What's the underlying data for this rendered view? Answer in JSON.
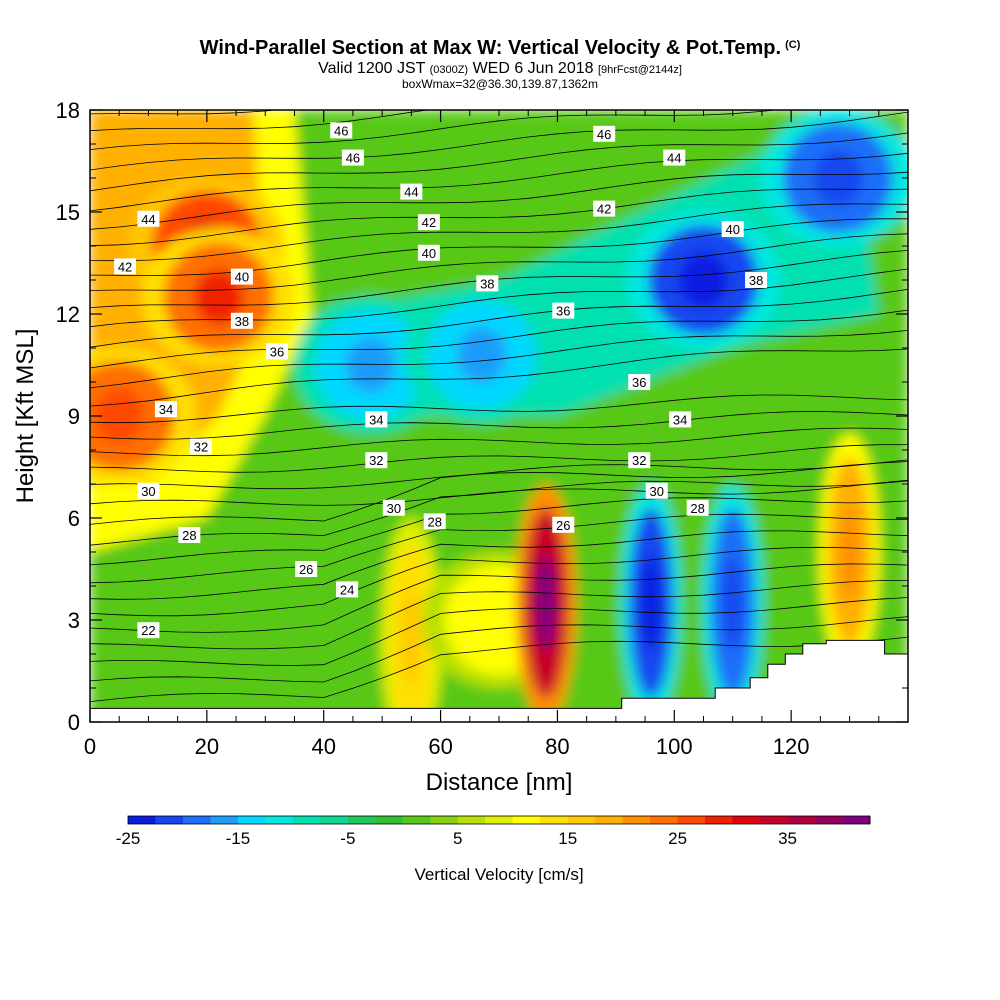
{
  "title": {
    "main": "Wind-Parallel Section at Max W: Vertical Velocity & Pot.Temp.",
    "copyright": "(C)",
    "valid_prefix": "Valid 1200 JST",
    "valid_utc": "(0300Z)",
    "valid_date": "WED 6 Jun 2018",
    "forecast": "[9hrFcst@2144z]",
    "box_info": "boxWmax=32@36.30,139.87,1362m"
  },
  "chart_data": {
    "type": "heatmap",
    "xlabel": "Distance [nm]",
    "ylabel": "Height [Kft MSL]",
    "xlim": [
      0,
      140
    ],
    "ylim": [
      0,
      18
    ],
    "x_ticks": [
      "0",
      "20",
      "40",
      "60",
      "80",
      "100",
      "120"
    ],
    "y_ticks": [
      "0",
      "3",
      "6",
      "9",
      "12",
      "15",
      "18"
    ],
    "colorbar": {
      "title": "Vertical Velocity [cm/s]",
      "ticks": [
        "-25",
        "-15",
        "-5",
        "5",
        "15",
        "25",
        "35"
      ],
      "levels_min": -25,
      "levels_max": 40,
      "step": 2.5,
      "colors": [
        "#0a1ce0",
        "#1646f0",
        "#1e6ef8",
        "#1e9cfa",
        "#00d8ff",
        "#00e8e0",
        "#00e0b0",
        "#10d890",
        "#20c860",
        "#30c030",
        "#58c818",
        "#88d010",
        "#b8e000",
        "#e0f000",
        "#ffff00",
        "#ffe000",
        "#ffc800",
        "#ffb000",
        "#ff9000",
        "#ff7000",
        "#ff4800",
        "#f02000",
        "#e00010",
        "#c80028",
        "#b00040",
        "#980060",
        "#800080"
      ]
    },
    "vertical_velocity_cells": [
      {
        "x": 20,
        "y": 14.0,
        "value": 30
      },
      {
        "x": 22,
        "y": 12.5,
        "value": 28
      },
      {
        "x": 5,
        "y": 9.0,
        "value": 27
      },
      {
        "x": 48,
        "y": 10.5,
        "value": -17
      },
      {
        "x": 67,
        "y": 10.8,
        "value": -16
      },
      {
        "x": 105,
        "y": 13.0,
        "value": -24
      },
      {
        "x": 128,
        "y": 16.0,
        "value": -22
      },
      {
        "x": 55,
        "y": 2.5,
        "value": 17
      },
      {
        "x": 70,
        "y": 3.0,
        "value": 12
      },
      {
        "x": 78,
        "y": 3.5,
        "value": 40
      },
      {
        "x": 96,
        "y": 3.5,
        "value": -24
      },
      {
        "x": 110,
        "y": 3.5,
        "value": -22
      },
      {
        "x": 130,
        "y": 5.0,
        "value": 22
      }
    ],
    "contour_labels": [
      {
        "x": 43,
        "y": 17.4,
        "text": "46"
      },
      {
        "x": 45,
        "y": 16.6,
        "text": "46"
      },
      {
        "x": 88,
        "y": 17.3,
        "text": "46"
      },
      {
        "x": 100,
        "y": 16.6,
        "text": "44"
      },
      {
        "x": 55,
        "y": 15.6,
        "text": "44"
      },
      {
        "x": 10,
        "y": 14.8,
        "text": "44"
      },
      {
        "x": 88,
        "y": 15.1,
        "text": "42"
      },
      {
        "x": 58,
        "y": 14.7,
        "text": "42"
      },
      {
        "x": 6,
        "y": 13.4,
        "text": "42"
      },
      {
        "x": 110,
        "y": 14.5,
        "text": "40"
      },
      {
        "x": 58,
        "y": 13.8,
        "text": "40"
      },
      {
        "x": 26,
        "y": 13.1,
        "text": "40"
      },
      {
        "x": 114,
        "y": 13.0,
        "text": "38"
      },
      {
        "x": 68,
        "y": 12.9,
        "text": "38"
      },
      {
        "x": 26,
        "y": 11.8,
        "text": "38"
      },
      {
        "x": 81,
        "y": 12.1,
        "text": "36"
      },
      {
        "x": 32,
        "y": 10.9,
        "text": "36"
      },
      {
        "x": 94,
        "y": 10.0,
        "text": "36"
      },
      {
        "x": 13,
        "y": 9.2,
        "text": "34"
      },
      {
        "x": 49,
        "y": 8.9,
        "text": "34"
      },
      {
        "x": 101,
        "y": 8.9,
        "text": "34"
      },
      {
        "x": 19,
        "y": 8.1,
        "text": "32"
      },
      {
        "x": 49,
        "y": 7.7,
        "text": "32"
      },
      {
        "x": 94,
        "y": 7.7,
        "text": "32"
      },
      {
        "x": 10,
        "y": 6.8,
        "text": "30"
      },
      {
        "x": 52,
        "y": 6.3,
        "text": "30"
      },
      {
        "x": 97,
        "y": 6.8,
        "text": "30"
      },
      {
        "x": 17,
        "y": 5.5,
        "text": "28"
      },
      {
        "x": 59,
        "y": 5.9,
        "text": "28"
      },
      {
        "x": 104,
        "y": 6.3,
        "text": "28"
      },
      {
        "x": 81,
        "y": 5.8,
        "text": "26"
      },
      {
        "x": 37,
        "y": 4.5,
        "text": "26"
      },
      {
        "x": 44,
        "y": 3.9,
        "text": "24"
      },
      {
        "x": 10,
        "y": 2.7,
        "text": "22"
      }
    ],
    "terrain": [
      [
        0,
        0.4
      ],
      [
        91,
        0.4
      ],
      [
        91,
        0.7
      ],
      [
        107,
        0.7
      ],
      [
        107,
        1.0
      ],
      [
        113,
        1.0
      ],
      [
        113,
        1.3
      ],
      [
        116,
        1.3
      ],
      [
        116,
        1.7
      ],
      [
        119,
        1.7
      ],
      [
        119,
        2.0
      ],
      [
        122,
        2.0
      ],
      [
        122,
        2.3
      ],
      [
        126,
        2.3
      ],
      [
        126,
        2.4
      ],
      [
        136,
        2.4
      ],
      [
        136,
        2.0
      ],
      [
        140,
        2.0
      ]
    ]
  }
}
